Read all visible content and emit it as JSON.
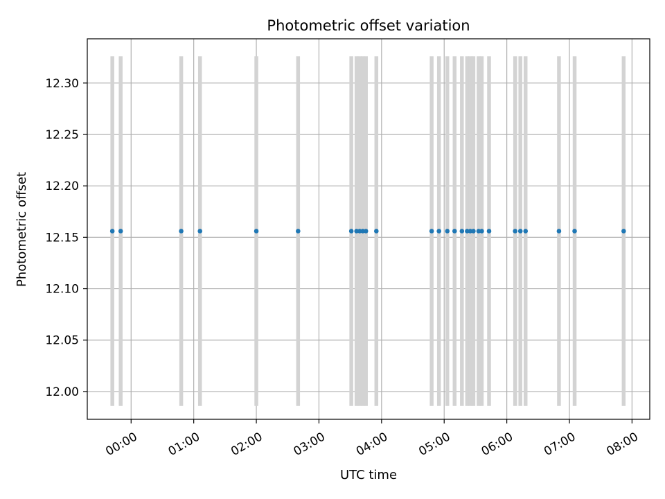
{
  "chart_data": {
    "type": "scatter",
    "title": "Photometric offset variation",
    "xlabel": "UTC time",
    "ylabel": "Photometric offset",
    "grid": true,
    "colors": {
      "points": "#1f77b4",
      "error_bars": "#d3d3d3",
      "grid": "#b0b0b0"
    },
    "x_unit": "UTC hh:mm",
    "x_ticks": [
      "00:00",
      "01:00",
      "02:00",
      "03:00",
      "04:00",
      "05:00",
      "06:00",
      "07:00",
      "08:00"
    ],
    "y_ticks": [
      "12.00",
      "12.05",
      "12.10",
      "12.15",
      "12.20",
      "12.25",
      "12.30"
    ],
    "xlim": [
      "23:18",
      "08:17"
    ],
    "ylim": [
      11.973,
      12.343
    ],
    "x": [
      "23:42",
      "23:50",
      "00:48",
      "01:06",
      "02:00",
      "02:40",
      "03:31",
      "03:36",
      "03:39",
      "03:42",
      "03:45",
      "03:55",
      "04:48",
      "04:55",
      "05:03",
      "05:10",
      "05:17",
      "05:22",
      "05:25",
      "05:28",
      "05:33",
      "05:36",
      "05:43",
      "06:08",
      "06:13",
      "06:18",
      "06:50",
      "07:05",
      "07:52"
    ],
    "y": [
      12.156,
      12.156,
      12.156,
      12.156,
      12.156,
      12.156,
      12.156,
      12.156,
      12.156,
      12.156,
      12.156,
      12.156,
      12.156,
      12.156,
      12.156,
      12.156,
      12.156,
      12.156,
      12.156,
      12.156,
      12.156,
      12.156,
      12.156,
      12.156,
      12.156,
      12.156,
      12.156,
      12.156,
      12.156
    ],
    "error": 0.17
  }
}
